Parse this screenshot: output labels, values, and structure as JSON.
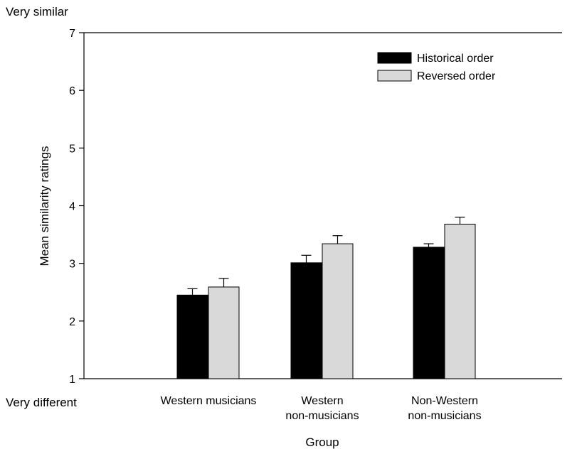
{
  "chart_data": {
    "type": "bar",
    "title": "",
    "xlabel": "Group",
    "ylabel": "Mean similarity ratings",
    "ylim": [
      1,
      7
    ],
    "yticks": [
      1,
      2,
      3,
      4,
      5,
      6,
      7
    ],
    "y_top_label": "Very similar",
    "y_bottom_label": "Very different",
    "categories": [
      [
        "Western musicians"
      ],
      [
        "Western",
        "non-musicians"
      ],
      [
        "Non-Western",
        "non-musicians"
      ]
    ],
    "series": [
      {
        "name": "Historical order",
        "values": [
          2.45,
          3.01,
          3.28
        ],
        "errors": [
          0.11,
          0.13,
          0.06
        ],
        "color": "#000000"
      },
      {
        "name": "Reversed order",
        "values": [
          2.59,
          3.34,
          3.68
        ],
        "errors": [
          0.15,
          0.14,
          0.12
        ],
        "color": "#d9d9d9"
      }
    ],
    "legend_position": "top-right",
    "grid": false
  }
}
